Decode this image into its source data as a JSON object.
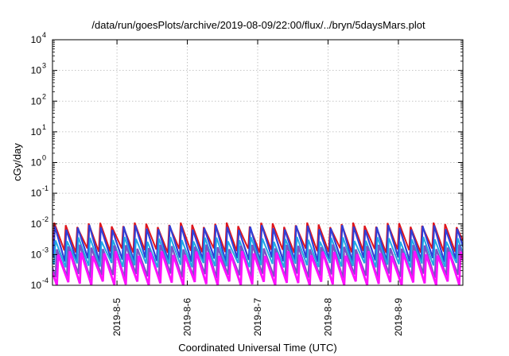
{
  "chart_data": {
    "type": "line",
    "title": "/data/run/goesPlots/archive/2019-08-09/22:00/flux/../bryn/5daysMars.plot",
    "xlabel": "Coordinated Universal Time (UTC)",
    "ylabel": "cGy/day",
    "yscale": "log",
    "ylim": [
      0.0001,
      10000
    ],
    "xlim": [
      "2019-08-04 02:00",
      "2019-08-09 22:00"
    ],
    "y_ticks": [
      {
        "value": 0.0001,
        "base": "10",
        "exp": "-4"
      },
      {
        "value": 0.001,
        "base": "10",
        "exp": "-3"
      },
      {
        "value": 0.01,
        "base": "10",
        "exp": "-2"
      },
      {
        "value": 0.1,
        "base": "10",
        "exp": "-1"
      },
      {
        "value": 1,
        "base": "10",
        "exp": "0"
      },
      {
        "value": 10,
        "base": "10",
        "exp": "1"
      },
      {
        "value": 100,
        "base": "10",
        "exp": "2"
      },
      {
        "value": 1000,
        "base": "10",
        "exp": "3"
      },
      {
        "value": 10000,
        "base": "10",
        "exp": "4"
      }
    ],
    "x_ticks": [
      {
        "value": "2019-08-05 00:00",
        "label": "2019-8-5"
      },
      {
        "value": "2019-08-06 00:00",
        "label": "2019-8-6"
      },
      {
        "value": "2019-08-07 00:00",
        "label": "2019-8-7"
      },
      {
        "value": "2019-08-08 00:00",
        "label": "2019-8-8"
      },
      {
        "value": "2019-08-09 00:00",
        "label": "2019-8-9"
      }
    ],
    "grid": true,
    "legend": "none",
    "series": [
      {
        "color": "#e0151b",
        "cycles_per_day": 6.12,
        "phase": 0.03,
        "min": 0.0012,
        "max": 0.0095,
        "width": 2.0
      },
      {
        "color": "#2f3fd8",
        "cycles_per_day": 6.12,
        "phase": 0.08,
        "min": 0.0006,
        "max": 0.0078,
        "width": 2.2
      },
      {
        "color": "#1fa8e6",
        "cycles_per_day": 6.12,
        "phase": 0.14,
        "min": 0.0004,
        "max": 0.0032,
        "width": 2.0
      },
      {
        "color": "#7a52c6",
        "cycles_per_day": 6.12,
        "phase": 0.26,
        "min": 0.00018,
        "max": 0.0018,
        "width": 2.4
      },
      {
        "color": "#ff10ff",
        "cycles_per_day": 6.12,
        "phase": 0.38,
        "min": 0.0001,
        "max": 0.0011,
        "width": 2.8
      }
    ]
  }
}
